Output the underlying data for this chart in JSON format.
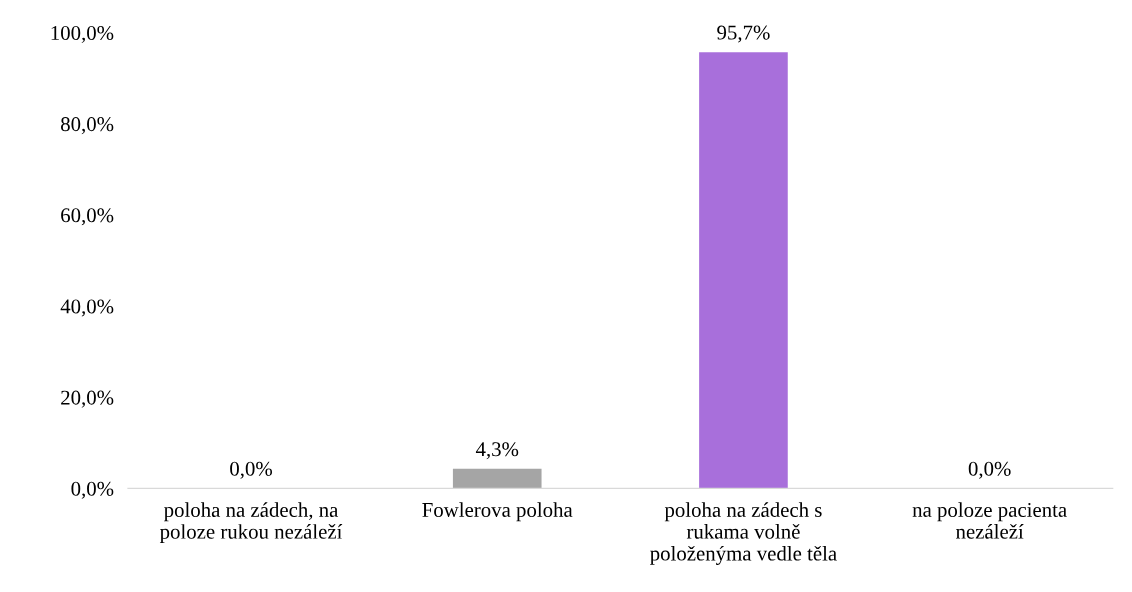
{
  "chart_data": {
    "type": "bar",
    "categories": [
      "poloha na zádech, na\npoloze rukou nezáleží",
      "Fowlerova poloha",
      "poloha na zádech s\nrukama volně\npoloženýma vedle těla",
      "na poloze pacienta\nnezáleží"
    ],
    "values": [
      0,
      4.3,
      95.7,
      0
    ],
    "colors": [
      "#a5a5a5",
      "#a5a5a5",
      "#a86fdb",
      "#a5a5a5"
    ],
    "value_labels": [
      "0,0%",
      "4,3%",
      "95,7%",
      "0,0%"
    ],
    "ylim": [
      0,
      100
    ],
    "yticks": [
      {
        "value": 0,
        "label": "0,0%"
      },
      {
        "value": 20,
        "label": "20,0%"
      },
      {
        "value": 40,
        "label": "40,0%"
      },
      {
        "value": 60,
        "label": "60,0%"
      },
      {
        "value": 80,
        "label": "80,0%"
      },
      {
        "value": 100,
        "label": "100,0%"
      }
    ],
    "grid": false
  }
}
